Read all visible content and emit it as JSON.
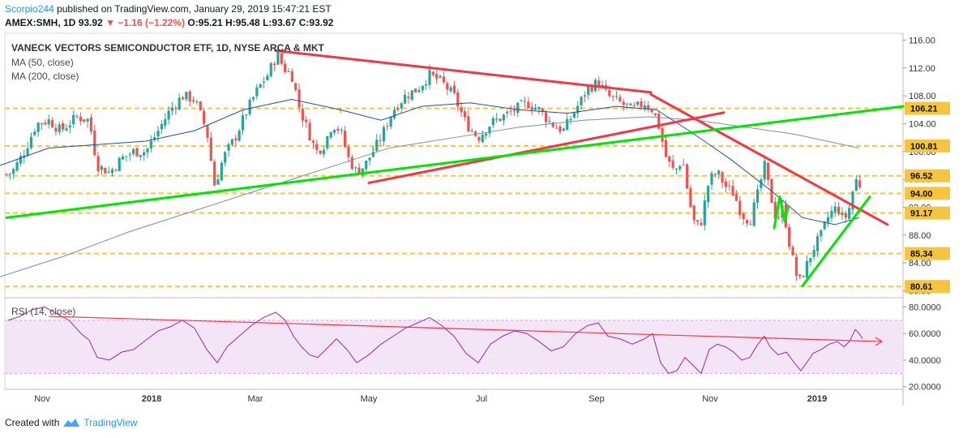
{
  "header": {
    "author": "Scorpio244",
    "published": "published on TradingView.com, January 29, 2019 15:47:21 EST",
    "symbol": "AMEX:SMH, 1D",
    "last": "93.92",
    "change": "▼ −1.16 (−1.22%)",
    "ohlc": "O:95.21 H:95.48 L:93.67 C:93.92"
  },
  "legend": {
    "title": "VANECK VECTORS SEMICONDUCTOR ETF, 1D, NYSE ARCA & MKT",
    "ma50": "MA (50, close)",
    "ma200": "MA (200, close)",
    "rsi": "RSI (14, close)"
  },
  "footer": {
    "created": "Created with",
    "brand": "TradingView"
  },
  "chart_data": [
    {
      "type": "candlestick",
      "panel": "price",
      "title": "VANECK VECTORS SEMICONDUCTOR ETF, 1D, NYSE ARCA & MKT",
      "x_ticks": [
        "Nov",
        "2018",
        "Mar",
        "May",
        "Jul",
        "Sep",
        "Nov",
        "2019"
      ],
      "y_ticks": [
        "116.00",
        "112.00",
        "108.00",
        "104.00",
        "100.00",
        "96.00",
        "92.00",
        "88.00",
        "84.00",
        "80.00"
      ],
      "ylim": [
        79,
        117
      ],
      "price_levels": [
        {
          "label": "106.21",
          "value": 106.21
        },
        {
          "label": "100.81",
          "value": 100.81
        },
        {
          "label": "96.52",
          "value": 96.52
        },
        {
          "label": "94.00",
          "value": 94.0
        },
        {
          "label": "91.17",
          "value": 91.17
        },
        {
          "label": "85.34",
          "value": 85.34
        },
        {
          "label": "80.61",
          "value": 80.61
        }
      ],
      "price_path": [
        [
          0,
          96.5
        ],
        [
          15,
          97
        ],
        [
          30,
          100
        ],
        [
          45,
          104
        ],
        [
          60,
          104.5
        ],
        [
          75,
          103
        ],
        [
          95,
          105
        ],
        [
          110,
          104.5
        ],
        [
          120,
          98
        ],
        [
          135,
          97
        ],
        [
          150,
          99
        ],
        [
          165,
          100
        ],
        [
          180,
          100
        ],
        [
          195,
          103
        ],
        [
          210,
          106
        ],
        [
          225,
          108
        ],
        [
          240,
          107.5
        ],
        [
          255,
          103
        ],
        [
          265,
          95
        ],
        [
          275,
          99
        ],
        [
          290,
          102
        ],
        [
          305,
          106
        ],
        [
          318,
          109
        ],
        [
          330,
          111
        ],
        [
          342,
          114
        ],
        [
          350,
          112
        ],
        [
          360,
          111
        ],
        [
          370,
          106
        ],
        [
          380,
          103
        ],
        [
          390,
          100
        ],
        [
          400,
          101
        ],
        [
          410,
          104
        ],
        [
          420,
          103
        ],
        [
          430,
          99
        ],
        [
          440,
          97
        ],
        [
          450,
          98
        ],
        [
          460,
          100
        ],
        [
          470,
          102
        ],
        [
          485,
          106
        ],
        [
          500,
          108
        ],
        [
          515,
          109
        ],
        [
          530,
          111
        ],
        [
          545,
          110
        ],
        [
          560,
          108
        ],
        [
          575,
          104
        ],
        [
          590,
          102
        ],
        [
          605,
          104
        ],
        [
          620,
          105
        ],
        [
          635,
          106
        ],
        [
          650,
          107
        ],
        [
          665,
          106
        ],
        [
          680,
          104
        ],
        [
          695,
          103
        ],
        [
          710,
          106
        ],
        [
          725,
          109
        ],
        [
          738,
          110
        ],
        [
          750,
          108
        ],
        [
          765,
          107
        ],
        [
          780,
          106
        ],
        [
          795,
          107
        ],
        [
          805,
          106
        ],
        [
          812,
          104
        ],
        [
          822,
          99
        ],
        [
          832,
          97
        ],
        [
          842,
          99
        ],
        [
          850,
          93
        ],
        [
          858,
          89
        ],
        [
          865,
          90
        ],
        [
          875,
          96
        ],
        [
          885,
          97
        ],
        [
          895,
          95
        ],
        [
          905,
          94
        ],
        [
          915,
          91
        ],
        [
          925,
          90
        ],
        [
          935,
          94
        ],
        [
          943,
          98
        ],
        [
          950,
          94
        ],
        [
          958,
          90
        ],
        [
          966,
          92
        ],
        [
          975,
          86
        ],
        [
          985,
          81
        ],
        [
          993,
          83
        ],
        [
          1003,
          86
        ],
        [
          1013,
          88
        ],
        [
          1023,
          91
        ],
        [
          1033,
          92
        ],
        [
          1041,
          90
        ],
        [
          1048,
          92
        ],
        [
          1055,
          96
        ],
        [
          1060,
          95.5
        ],
        [
          1064,
          93.92
        ]
      ],
      "ma50_path": [
        [
          0,
          98
        ],
        [
          60,
          100.5
        ],
        [
          120,
          101
        ],
        [
          180,
          101.5
        ],
        [
          240,
          103
        ],
        [
          300,
          106
        ],
        [
          360,
          107.5
        ],
        [
          420,
          106
        ],
        [
          470,
          104.5
        ],
        [
          520,
          106.5
        ],
        [
          580,
          107
        ],
        [
          640,
          106
        ],
        [
          700,
          105.5
        ],
        [
          760,
          106.5
        ],
        [
          810,
          106
        ],
        [
          850,
          103
        ],
        [
          900,
          99
        ],
        [
          950,
          94.5
        ],
        [
          990,
          90.5
        ],
        [
          1030,
          89.5
        ],
        [
          1060,
          90.5
        ]
      ],
      "ma200_path": [
        [
          0,
          82
        ],
        [
          80,
          85
        ],
        [
          160,
          88.5
        ],
        [
          240,
          91.5
        ],
        [
          320,
          94.5
        ],
        [
          400,
          97.5
        ],
        [
          480,
          100.5
        ],
        [
          560,
          102
        ],
        [
          640,
          103.5
        ],
        [
          720,
          104.5
        ],
        [
          800,
          105
        ],
        [
          860,
          104.5
        ],
        [
          920,
          103.5
        ],
        [
          980,
          102.5
        ],
        [
          1060,
          100.5
        ]
      ],
      "trendlines": [
        {
          "color": "#f23645",
          "from": [
            340,
            114.5
          ],
          "to": [
            803,
            108.5
          ]
        },
        {
          "color": "#f23645",
          "from": [
            455,
            95.5
          ],
          "to": [
            893,
            105.6
          ]
        },
        {
          "color": "#f23645",
          "from": [
            803,
            108.2
          ],
          "to": [
            1095,
            89.5
          ]
        },
        {
          "color": "#00e600",
          "from": [
            8,
            90.5
          ],
          "to": [
            1188,
            106.5
          ]
        },
        {
          "color": "#00e600",
          "from": [
            990,
            80.7
          ],
          "to": [
            1073,
            93.5
          ]
        },
        {
          "color": "#00e600",
          "from": [
            955,
            89
          ],
          "to": [
            962,
            93.5
          ]
        },
        {
          "color": "#00e600",
          "from": [
            962,
            93.5
          ],
          "to": [
            968,
            90
          ]
        },
        {
          "color": "#00e600",
          "from": [
            968,
            90
          ],
          "to": [
            972,
            92
          ]
        }
      ]
    },
    {
      "type": "line",
      "panel": "rsi",
      "series": [
        {
          "name": "RSI (14, close)"
        }
      ],
      "y_ticks": [
        "80.0000",
        "60.0000",
        "40.0000",
        "20.0000"
      ],
      "ylim": [
        18,
        87
      ],
      "band": [
        30,
        70
      ],
      "values": [
        [
          10,
          70
        ],
        [
          25,
          73
        ],
        [
          40,
          78
        ],
        [
          55,
          80
        ],
        [
          70,
          75
        ],
        [
          85,
          70
        ],
        [
          100,
          60
        ],
        [
          110,
          55
        ],
        [
          120,
          42
        ],
        [
          135,
          40
        ],
        [
          150,
          46
        ],
        [
          165,
          48
        ],
        [
          180,
          55
        ],
        [
          195,
          62
        ],
        [
          210,
          65
        ],
        [
          225,
          70
        ],
        [
          240,
          64
        ],
        [
          255,
          48
        ],
        [
          268,
          38
        ],
        [
          280,
          50
        ],
        [
          295,
          58
        ],
        [
          310,
          66
        ],
        [
          325,
          72
        ],
        [
          340,
          76
        ],
        [
          352,
          70
        ],
        [
          362,
          58
        ],
        [
          372,
          50
        ],
        [
          382,
          44
        ],
        [
          392,
          42
        ],
        [
          402,
          48
        ],
        [
          415,
          56
        ],
        [
          428,
          48
        ],
        [
          440,
          38
        ],
        [
          455,
          44
        ],
        [
          470,
          52
        ],
        [
          485,
          58
        ],
        [
          500,
          64
        ],
        [
          515,
          68
        ],
        [
          530,
          72
        ],
        [
          545,
          66
        ],
        [
          560,
          58
        ],
        [
          575,
          45
        ],
        [
          590,
          38
        ],
        [
          605,
          52
        ],
        [
          620,
          58
        ],
        [
          635,
          62
        ],
        [
          650,
          60
        ],
        [
          665,
          54
        ],
        [
          680,
          47
        ],
        [
          695,
          50
        ],
        [
          710,
          60
        ],
        [
          725,
          66
        ],
        [
          738,
          68
        ],
        [
          750,
          58
        ],
        [
          765,
          56
        ],
        [
          780,
          52
        ],
        [
          795,
          56
        ],
        [
          805,
          60
        ],
        [
          815,
          38
        ],
        [
          825,
          30
        ],
        [
          835,
          32
        ],
        [
          845,
          42
        ],
        [
          855,
          36
        ],
        [
          865,
          30
        ],
        [
          875,
          48
        ],
        [
          885,
          52
        ],
        [
          895,
          50
        ],
        [
          905,
          46
        ],
        [
          915,
          40
        ],
        [
          925,
          42
        ],
        [
          935,
          52
        ],
        [
          943,
          58
        ],
        [
          950,
          50
        ],
        [
          960,
          44
        ],
        [
          970,
          46
        ],
        [
          980,
          38
        ],
        [
          988,
          32
        ],
        [
          995,
          38
        ],
        [
          1003,
          45
        ],
        [
          1013,
          48
        ],
        [
          1023,
          52
        ],
        [
          1033,
          54
        ],
        [
          1041,
          50
        ],
        [
          1048,
          54
        ],
        [
          1055,
          63
        ],
        [
          1060,
          60
        ],
        [
          1064,
          56
        ]
      ],
      "trendline": {
        "from": [
          60,
          73
        ],
        "to": [
          1088,
          54
        ]
      }
    }
  ],
  "colors": {
    "up": "#26a69a",
    "down": "#ef5350",
    "ma50": "#1f4ea3",
    "ma200": "#7a8ab5",
    "rsi": "#9c27b0",
    "rsi_band": "#f3e5f5",
    "level": "#f5c542",
    "red_line": "#f23645",
    "green_line": "#00e600"
  }
}
